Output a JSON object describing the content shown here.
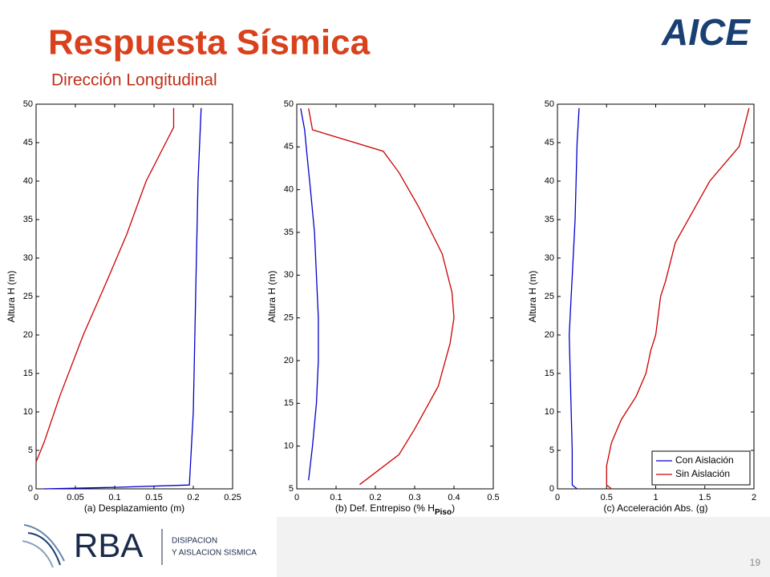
{
  "header": {
    "title": "Respuesta Sísmica",
    "subtitle": "Dirección Longitudinal",
    "logo": "AICE"
  },
  "chart_data": [
    {
      "type": "line",
      "xlabel": "(a) Desplazamiento (m)",
      "ylabel": "Altura H (m)",
      "xlim": [
        0,
        0.25
      ],
      "xticks": [
        0,
        0.05,
        0.1,
        0.15,
        0.2,
        0.25
      ],
      "ylim": [
        0,
        50
      ],
      "yticks": [
        0,
        5,
        10,
        15,
        20,
        25,
        30,
        35,
        40,
        45,
        50
      ],
      "series": [
        {
          "color": "#0000cc",
          "x": [
            0.01,
            0.1,
            0.195,
            0.2,
            0.203,
            0.206,
            0.21
          ],
          "values": [
            0,
            0.2,
            0.5,
            10,
            25,
            40,
            49.5
          ]
        },
        {
          "color": "#cc0000",
          "x": [
            0,
            0.01,
            0.03,
            0.06,
            0.09,
            0.115,
            0.14,
            0.165,
            0.175,
            0.175
          ],
          "values": [
            3.5,
            6,
            12,
            20,
            27,
            33,
            40,
            45,
            47,
            49.5
          ]
        }
      ]
    },
    {
      "type": "line",
      "xlabel": "(b) Def. Entrepiso (% H",
      "xlabel_sub": "Piso",
      "xlabel_end": ")",
      "ylabel": "Altura H (m)",
      "xlim": [
        0,
        0.5
      ],
      "xticks": [
        0,
        0.1,
        0.2,
        0.3,
        0.4,
        0.5
      ],
      "ylim": [
        5,
        50
      ],
      "yticks": [
        5,
        10,
        15,
        20,
        25,
        30,
        35,
        40,
        45,
        50
      ],
      "series": [
        {
          "color": "#0000cc",
          "x": [
            0.03,
            0.04,
            0.05,
            0.055,
            0.055,
            0.05,
            0.045,
            0.035,
            0.025,
            0.02,
            0.01
          ],
          "values": [
            6,
            10,
            15,
            20,
            25,
            30,
            35,
            40,
            44.5,
            47,
            49.5
          ]
        },
        {
          "color": "#cc0000",
          "x": [
            0.16,
            0.26,
            0.3,
            0.36,
            0.39,
            0.4,
            0.395,
            0.37,
            0.31,
            0.26,
            0.22,
            0.04,
            0.03
          ],
          "values": [
            5.5,
            9,
            12,
            17,
            22,
            25,
            28,
            32.5,
            38,
            42,
            44.5,
            47,
            49.5
          ]
        }
      ]
    },
    {
      "type": "line",
      "xlabel": "(c) Acceleración Abs. (g)",
      "ylabel": "Altura H (m)",
      "xlim": [
        0,
        2
      ],
      "xticks": [
        0,
        0.5,
        1,
        1.5,
        2
      ],
      "ylim": [
        0,
        50
      ],
      "yticks": [
        0,
        5,
        10,
        15,
        20,
        25,
        30,
        35,
        40,
        45,
        50
      ],
      "legend": "lower right",
      "series": [
        {
          "name": "Con Aislación",
          "color": "#0000cc",
          "x": [
            0.2,
            0.15,
            0.15,
            0.13,
            0.12,
            0.14,
            0.16,
            0.18,
            0.2,
            0.22
          ],
          "values": [
            0,
            0.5,
            5,
            15,
            20,
            25,
            30,
            35,
            45,
            49.5
          ]
        },
        {
          "name": "Sin Aislación",
          "color": "#cc0000",
          "x": [
            0.55,
            0.5,
            0.5,
            0.55,
            0.65,
            0.8,
            0.9,
            0.95,
            1,
            1.05,
            1.1,
            1.2,
            1.55,
            1.85,
            1.95
          ],
          "values": [
            0,
            0.5,
            3,
            6,
            9,
            12,
            15,
            18,
            20,
            25,
            27,
            32,
            40,
            44.5,
            49.5
          ]
        }
      ]
    }
  ],
  "footer": {
    "brand": "RBA",
    "tagline_1": "DISIPACION",
    "tagline_2": "Y AISLACION SISMICA",
    "page": "19"
  }
}
